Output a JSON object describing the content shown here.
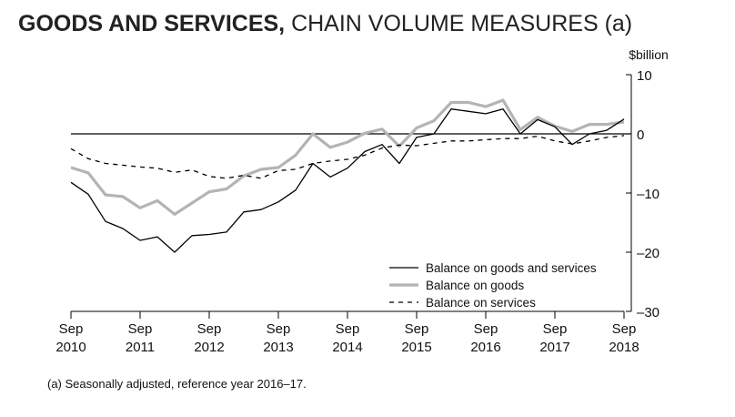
{
  "title": {
    "bold": "GOODS AND SERVICES,",
    "normal": " CHAIN VOLUME MEASURES (a)"
  },
  "footnote": "(a) Seasonally adjusted, reference year 2016–17.",
  "chart_data": {
    "type": "line",
    "title": "GOODS AND SERVICES, CHAIN VOLUME MEASURES (a)",
    "ylabel": "$billion",
    "ylim": [
      -30,
      10
    ],
    "yticks": [
      10,
      0,
      -10,
      -20,
      -30
    ],
    "ytick_labels": [
      "10",
      "0",
      "–10",
      "–20",
      "–30"
    ],
    "xlim": [
      0,
      32
    ],
    "xticks": [
      {
        "x": 0,
        "month": "Sep",
        "year": "2010"
      },
      {
        "x": 4,
        "month": "Sep",
        "year": "2011"
      },
      {
        "x": 8,
        "month": "Sep",
        "year": "2012"
      },
      {
        "x": 12,
        "month": "Sep",
        "year": "2013"
      },
      {
        "x": 16,
        "month": "Sep",
        "year": "2014"
      },
      {
        "x": 20,
        "month": "Sep",
        "year": "2015"
      },
      {
        "x": 24,
        "month": "Sep",
        "year": "2016"
      },
      {
        "x": 28,
        "month": "Sep",
        "year": "2017"
      },
      {
        "x": 32,
        "month": "Sep",
        "year": "2018"
      }
    ],
    "zero_line": true,
    "legend_position": "bottom-right",
    "series": [
      {
        "name": "Balance on goods and services",
        "style": "solid",
        "color": "#000000",
        "values": [
          -8.2,
          -10.2,
          -14.8,
          -16.0,
          -18.0,
          -17.4,
          -20.0,
          -17.2,
          -17.0,
          -16.6,
          -13.2,
          -12.8,
          -11.5,
          -9.5,
          -5.0,
          -7.3,
          -5.8,
          -3.0,
          -1.8,
          -5.0,
          -0.6,
          0.0,
          4.2,
          3.8,
          3.4,
          4.2,
          0.0,
          2.4,
          1.2,
          -1.8,
          0.0,
          0.6,
          2.5
        ]
      },
      {
        "name": "Balance on goods",
        "style": "solid",
        "color": "#b4b4b4",
        "values": [
          -5.7,
          -6.6,
          -10.3,
          -10.6,
          -12.5,
          -11.3,
          -13.6,
          -11.7,
          -9.8,
          -9.3,
          -7.1,
          -6.0,
          -5.7,
          -3.6,
          0.0,
          -2.3,
          -1.4,
          0.1,
          0.8,
          -2.1,
          1.0,
          2.2,
          5.3,
          5.3,
          4.6,
          5.7,
          0.7,
          2.8,
          1.3,
          0.4,
          1.6,
          1.6,
          2.0
        ]
      },
      {
        "name": "Balance on services",
        "style": "dashed",
        "color": "#000000",
        "values": [
          -2.5,
          -4.2,
          -5.0,
          -5.3,
          -5.6,
          -5.8,
          -6.5,
          -6.1,
          -7.2,
          -7.5,
          -7.0,
          -7.5,
          -6.2,
          -6.0,
          -5.0,
          -4.6,
          -4.3,
          -3.6,
          -2.4,
          -1.9,
          -2.0,
          -1.6,
          -1.2,
          -1.2,
          -1.0,
          -0.8,
          -0.8,
          -0.4,
          -1.2,
          -1.7,
          -1.2,
          -0.6,
          -0.3
        ]
      }
    ]
  }
}
